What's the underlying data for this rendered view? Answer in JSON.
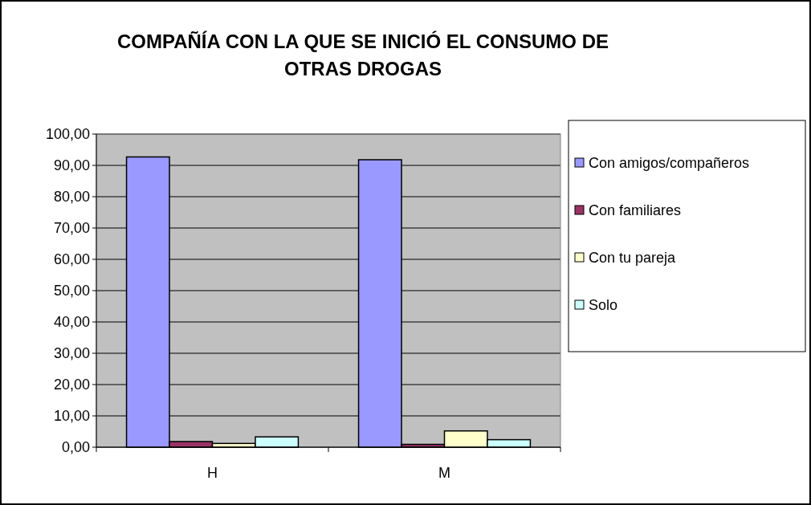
{
  "chart_data": {
    "type": "bar",
    "title": "COMPAÑÍA CON LA QUE SE INICIÓ EL CONSUMO DE OTRAS DROGAS",
    "categories": [
      "H",
      "M"
    ],
    "series": [
      {
        "name": "Con amigos/compañeros",
        "color": "#9999ff",
        "values": [
          92.7,
          91.8
        ]
      },
      {
        "name": "Con familiares",
        "color": "#993366",
        "values": [
          1.8,
          0.9
        ]
      },
      {
        "name": "Con tu pareja",
        "color": "#ffffcc",
        "values": [
          1.2,
          5.2
        ]
      },
      {
        "name": "Solo",
        "color": "#ccffff",
        "values": [
          3.3,
          2.4
        ]
      }
    ],
    "ylim": [
      0,
      100
    ],
    "yticks": [
      {
        "value": 0,
        "label": "0,00"
      },
      {
        "value": 10,
        "label": "10,00"
      },
      {
        "value": 20,
        "label": "20,00"
      },
      {
        "value": 30,
        "label": "30,00"
      },
      {
        "value": 40,
        "label": "40,00"
      },
      {
        "value": 50,
        "label": "50,00"
      },
      {
        "value": 60,
        "label": "60,00"
      },
      {
        "value": 70,
        "label": "70,00"
      },
      {
        "value": 80,
        "label": "80,00"
      },
      {
        "value": 90,
        "label": "90,00"
      },
      {
        "value": 100,
        "label": "100,00"
      }
    ],
    "grid": "y",
    "legend": "right"
  }
}
